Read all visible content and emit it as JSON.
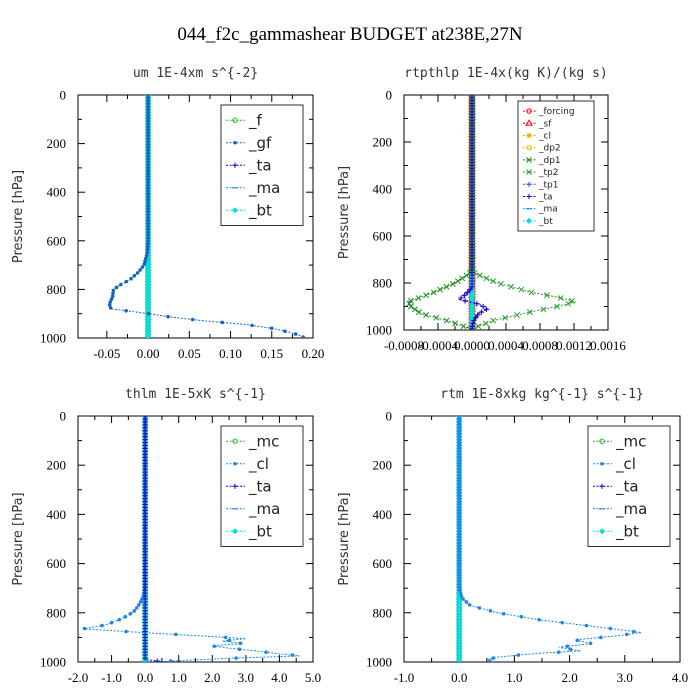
{
  "figure": {
    "title": "044_f2c_gammashear  BUDGET at238E,27N"
  },
  "colors": {
    "forcing": "#ff0000",
    "sf": "#ff0000",
    "cl": "#ffa500",
    "dp2": "#cccc00",
    "dp1": "#1a8c1a",
    "tp2": "#2e9e2e",
    "tp1": "#2e4cff",
    "ta": "#2200cc",
    "ma": "#1e90ff",
    "bt": "#00e0e0",
    "f": "#22bb22",
    "gf": "#1565c0",
    "mc": "#22bb22",
    "cl_blue": "#1e88e5",
    "axis": "#000000"
  },
  "chart_data": [
    {
      "type": "line",
      "title": "um   1E-4xm s^{-2}",
      "ylabel": "Pressure [hPa]",
      "xlim": [
        -0.085,
        0.2
      ],
      "ylim": [
        1000,
        0
      ],
      "xticks": [
        -0.05,
        0,
        0.05,
        0.1,
        0.15,
        0.2
      ],
      "xtick_labels": [
        "-0.05",
        "0.00",
        "0.05",
        "0.10",
        "0.15",
        "0.20"
      ],
      "yticks": [
        0,
        200,
        400,
        600,
        800,
        1000
      ],
      "ytick_labels": [
        "0",
        "200",
        "400",
        "600",
        "800",
        "1000"
      ],
      "legend": "top-right",
      "legend_size": "large",
      "series": [
        {
          "name": "_f",
          "color": "#22bb22",
          "marker": "circle",
          "y": [
            0,
            1000
          ],
          "x": [
            0,
            0
          ]
        },
        {
          "name": "_gf",
          "color": "#1565c0",
          "marker": "dot",
          "y": [
            0,
            200,
            400,
            600,
            650,
            700,
            730,
            760,
            780,
            800,
            830,
            860,
            880,
            900,
            915,
            930,
            945,
            960,
            975,
            990,
            1000
          ],
          "x": [
            0,
            0,
            0,
            0,
            -0.001,
            -0.005,
            -0.012,
            -0.022,
            -0.033,
            -0.042,
            -0.043,
            -0.047,
            -0.045,
            0.001,
            0.03,
            0.07,
            0.12,
            0.15,
            0.17,
            0.185,
            0.19
          ]
        },
        {
          "name": "_ta",
          "color": "#2200cc",
          "marker": "plus",
          "y": [
            0,
            1000
          ],
          "x": [
            0,
            0
          ]
        },
        {
          "name": "_ma",
          "color": "#1e90ff",
          "marker": "dash",
          "y": [
            0,
            1000
          ],
          "x": [
            0,
            0
          ]
        },
        {
          "name": "_bt",
          "color": "#00e0e0",
          "marker": "diamond",
          "y": [
            0,
            1000
          ],
          "x": [
            0,
            0
          ]
        }
      ]
    },
    {
      "type": "line",
      "title": "rtpthlp   1E-4x(kg K)/(kg s)",
      "ylabel": "Pressure [hPa]",
      "xlim": [
        -0.0008,
        0.0016
      ],
      "ylim": [
        1000,
        0
      ],
      "xticks": [
        -0.0008,
        -0.0004,
        0,
        0.0004,
        0.0008,
        0.0012,
        0.0016
      ],
      "xtick_labels": [
        "-0.0008",
        "-0.0004",
        "0.0000",
        "0.0004",
        "0.0008",
        "0.0012",
        "0.0016"
      ],
      "yticks": [
        0,
        200,
        400,
        600,
        800,
        1000
      ],
      "ytick_labels": [
        "0",
        "200",
        "400",
        "600",
        "800",
        "1000"
      ],
      "legend": "top-right",
      "legend_size": "small",
      "series": [
        {
          "name": "_forcing",
          "color": "#ff0000",
          "marker": "circle",
          "y": [
            0,
            1000
          ],
          "x": [
            0,
            0
          ]
        },
        {
          "name": "_sf",
          "color": "#ff0000",
          "marker": "triangle",
          "y": [
            0,
            1000
          ],
          "x": [
            0,
            0
          ]
        },
        {
          "name": "_cl",
          "color": "#ffa500",
          "marker": "star",
          "y": [
            0,
            1000
          ],
          "x": [
            0,
            0
          ]
        },
        {
          "name": "_dp2",
          "color": "#cccc00",
          "marker": "circle",
          "y": [
            0,
            1000
          ],
          "x": [
            0,
            0
          ]
        },
        {
          "name": "_dp1",
          "color": "#1a8c1a",
          "marker": "x",
          "y": [
            0,
            740,
            760,
            800,
            840,
            860,
            880,
            900,
            930,
            960,
            990,
            1000
          ],
          "x": [
            0,
            0,
            -3e-05,
            -0.0002,
            -0.00045,
            -0.0006,
            -0.00075,
            -0.00072,
            -0.0006,
            -0.0003,
            -5e-05,
            0
          ]
        },
        {
          "name": "_tp2",
          "color": "#2e9e2e",
          "marker": "x",
          "y": [
            0,
            740,
            760,
            800,
            840,
            860,
            880,
            900,
            930,
            960,
            990,
            1000
          ],
          "x": [
            0,
            0,
            4e-05,
            0.0003,
            0.0007,
            0.001,
            0.00122,
            0.001,
            0.0006,
            0.00025,
            3e-05,
            0
          ]
        },
        {
          "name": "_tp1",
          "color": "#2e4cff",
          "marker": "plus",
          "y": [
            0,
            820,
            850,
            870,
            890,
            910,
            930,
            960,
            990,
            1000
          ],
          "x": [
            0,
            0,
            -8e-05,
            -0.00015,
            8e-05,
            0.00018,
            8e-05,
            2e-05,
            0,
            0
          ]
        },
        {
          "name": "_ta",
          "color": "#2200cc",
          "marker": "plus",
          "y": [
            0,
            820,
            850,
            870,
            890,
            910,
            930,
            960,
            990,
            1000
          ],
          "x": [
            0,
            0,
            -8e-05,
            -0.00015,
            8e-05,
            0.00018,
            8e-05,
            2e-05,
            0,
            0
          ]
        },
        {
          "name": "_ma",
          "color": "#1e90ff",
          "marker": "dash",
          "y": [
            0,
            1000
          ],
          "x": [
            0,
            0
          ]
        },
        {
          "name": "_bt",
          "color": "#00e0e0",
          "marker": "diamond",
          "y": [
            0,
            1000
          ],
          "x": [
            0,
            0
          ]
        }
      ]
    },
    {
      "type": "line",
      "title": "thlm   1E-5xK s^{-1}",
      "ylabel": "Pressure [hPa]",
      "xlim": [
        -2.0,
        5.0
      ],
      "ylim": [
        1000,
        0
      ],
      "xticks": [
        -2,
        -1,
        0,
        1,
        2,
        3,
        4,
        5
      ],
      "xtick_labels": [
        "-2.0",
        "-1.0",
        "0.0",
        "1.0",
        "2.0",
        "3.0",
        "4.0",
        "5.0"
      ],
      "yticks": [
        0,
        200,
        400,
        600,
        800,
        1000
      ],
      "ytick_labels": [
        "0",
        "200",
        "400",
        "600",
        "800",
        "1000"
      ],
      "legend": "top-right",
      "legend_size": "large",
      "series": [
        {
          "name": "_mc",
          "color": "#22bb22",
          "marker": "circle",
          "y": [
            0,
            1000
          ],
          "x": [
            0,
            0
          ]
        },
        {
          "name": "_cl",
          "color": "#1e88e5",
          "marker": "dot",
          "y": [
            0,
            700,
            730,
            760,
            790,
            810,
            830,
            850,
            865,
            880,
            895,
            905,
            915,
            925,
            935,
            945,
            955,
            965,
            975,
            985,
            995,
            1000
          ],
          "x": [
            0,
            -0.01,
            -0.05,
            -0.15,
            -0.3,
            -0.5,
            -0.8,
            -1.2,
            -1.85,
            -0.1,
            1.8,
            3.0,
            2.3,
            2.9,
            2.0,
            2.6,
            3.3,
            3.9,
            4.6,
            2.5,
            0.9,
            0.2
          ]
        },
        {
          "name": "_ta",
          "color": "#2200cc",
          "marker": "plus",
          "y": [
            0,
            990,
            1000
          ],
          "x": [
            0,
            0,
            0.6
          ]
        },
        {
          "name": "_ma",
          "color": "#1e90ff",
          "marker": "dash",
          "y": [
            0,
            1000
          ],
          "x": [
            0,
            0
          ]
        },
        {
          "name": "_bt",
          "color": "#00e0e0",
          "marker": "diamond",
          "y": [
            0,
            1000
          ],
          "x": [
            0,
            0
          ]
        }
      ]
    },
    {
      "type": "line",
      "title": "rtm   1E-8xkg kg^{-1} s^{-1}",
      "ylabel": "Pressure [hPa]",
      "xlim": [
        -1.0,
        4.0
      ],
      "ylim": [
        1000,
        0
      ],
      "xticks": [
        -1,
        0,
        1,
        2,
        3,
        4
      ],
      "xtick_labels": [
        "-1.0",
        "0.0",
        "1.0",
        "2.0",
        "3.0",
        "4.0"
      ],
      "yticks": [
        0,
        200,
        400,
        600,
        800,
        1000
      ],
      "ytick_labels": [
        "0",
        "200",
        "400",
        "600",
        "800",
        "1000"
      ],
      "legend": "top-right",
      "legend_size": "large",
      "series": [
        {
          "name": "_mc",
          "color": "#22bb22",
          "marker": "circle",
          "y": [
            0,
            1000
          ],
          "x": [
            0,
            0
          ]
        },
        {
          "name": "_cl",
          "color": "#1e88e5",
          "marker": "dot",
          "y": [
            0,
            700,
            740,
            770,
            800,
            830,
            860,
            880,
            895,
            910,
            925,
            940,
            955,
            965,
            980,
            990,
            1000
          ],
          "x": [
            0,
            0,
            0.05,
            0.2,
            0.7,
            1.5,
            2.6,
            3.3,
            2.8,
            2.1,
            2.4,
            1.8,
            2.2,
            1.4,
            0.7,
            0.5,
            0.6
          ]
        },
        {
          "name": "_ta",
          "color": "#2200cc",
          "marker": "plus",
          "y": [
            0,
            1000
          ],
          "x": [
            0,
            0
          ]
        },
        {
          "name": "_ma",
          "color": "#1e90ff",
          "marker": "dash",
          "y": [
            0,
            1000
          ],
          "x": [
            0,
            0
          ]
        },
        {
          "name": "_bt",
          "color": "#00e0e0",
          "marker": "diamond",
          "y": [
            0,
            1000
          ],
          "x": [
            0,
            0
          ]
        }
      ]
    }
  ]
}
